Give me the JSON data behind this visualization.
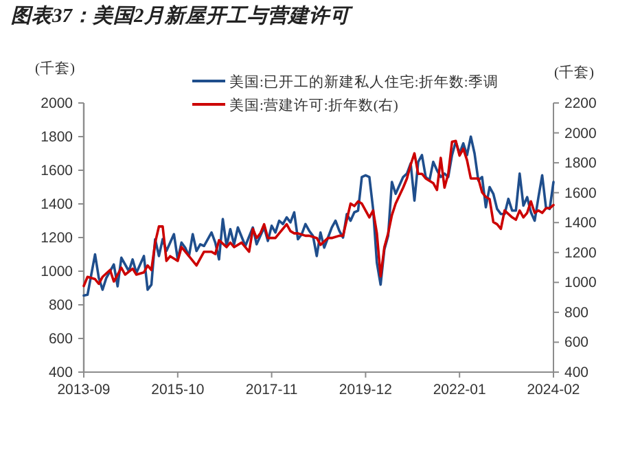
{
  "chart_data": {
    "type": "line",
    "title": "图表37：美国2月新屋开工与营建许可",
    "ylabel": "(千套)",
    "y2label": "(千套)",
    "legend": "top",
    "xlim": [
      "2013-09",
      "2024-02"
    ],
    "xticks": [
      "2013-09",
      "2015-10",
      "2017-11",
      "2019-12",
      "2022-01",
      "2024-02"
    ],
    "ylim": [
      400,
      2000
    ],
    "yticks": [
      400,
      600,
      800,
      1000,
      1200,
      1400,
      1600,
      1800,
      2000
    ],
    "y2lim": [
      400,
      2200
    ],
    "y2ticks": [
      400,
      600,
      800,
      1000,
      1200,
      1400,
      1600,
      1800,
      2000,
      2200
    ],
    "series": [
      {
        "name": "美国:已开工的新建私人住宅:折年数:季调",
        "color": "#1f4e8c",
        "x": [
          "2013-09",
          "2013-10",
          "2013-12",
          "2014-01",
          "2014-02",
          "2014-03",
          "2014-05",
          "2014-06",
          "2014-07",
          "2014-09",
          "2014-10",
          "2014-11",
          "2015-01",
          "2015-02",
          "2015-03",
          "2015-04",
          "2015-05",
          "2015-06",
          "2015-07",
          "2015-09",
          "2015-10",
          "2015-11",
          "2015-12",
          "2016-01",
          "2016-02",
          "2016-03",
          "2016-04",
          "2016-05",
          "2016-07",
          "2016-08",
          "2016-09",
          "2016-10",
          "2016-11",
          "2016-12",
          "2017-01",
          "2017-02",
          "2017-04",
          "2017-06",
          "2017-07",
          "2017-08",
          "2017-09",
          "2017-10",
          "2017-11",
          "2017-12",
          "2018-01",
          "2018-02",
          "2018-03",
          "2018-04",
          "2018-05",
          "2018-06",
          "2018-07",
          "2018-08",
          "2018-09",
          "2018-10",
          "2018-11",
          "2018-12",
          "2019-01",
          "2019-02",
          "2019-03",
          "2019-04",
          "2019-05",
          "2019-06",
          "2019-07",
          "2019-08",
          "2019-09",
          "2019-10",
          "2019-11",
          "2019-12",
          "2020-01",
          "2020-02",
          "2020-03",
          "2020-04",
          "2020-05",
          "2020-06",
          "2020-07",
          "2020-08",
          "2020-09",
          "2020-10",
          "2020-11",
          "2020-12",
          "2021-01",
          "2021-02",
          "2021-03",
          "2021-04",
          "2021-05",
          "2021-06",
          "2021-07",
          "2021-08",
          "2021-09",
          "2021-10",
          "2021-11",
          "2021-12",
          "2022-01",
          "2022-02",
          "2022-03",
          "2022-04",
          "2022-05",
          "2022-06",
          "2022-07",
          "2022-08",
          "2022-09",
          "2022-10",
          "2022-11",
          "2022-12",
          "2023-01",
          "2023-02",
          "2023-03",
          "2023-04",
          "2023-05",
          "2023-06",
          "2023-07",
          "2023-08",
          "2023-09",
          "2023-10",
          "2023-11",
          "2023-12",
          "2024-01",
          "2024-02"
        ],
        "values": [
          855,
          860,
          1100,
          960,
          890,
          960,
          1040,
          910,
          1080,
          1000,
          1070,
          990,
          1090,
          890,
          920,
          1190,
          1090,
          1190,
          1120,
          1220,
          1070,
          1170,
          1140,
          1090,
          1220,
          1120,
          1160,
          1150,
          1230,
          1170,
          1070,
          1310,
          1150,
          1250,
          1160,
          1260,
          1150,
          1260,
          1160,
          1210,
          1260,
          1180,
          1270,
          1230,
          1300,
          1280,
          1320,
          1290,
          1350,
          1190,
          1220,
          1280,
          1240,
          1210,
          1090,
          1230,
          1140,
          1200,
          1260,
          1300,
          1240,
          1200,
          1340,
          1300,
          1350,
          1360,
          1560,
          1570,
          1560,
          1370,
          1050,
          920,
          1130,
          1210,
          1530,
          1460,
          1510,
          1560,
          1580,
          1640,
          1420,
          1650,
          1690,
          1560,
          1540,
          1650,
          1600,
          1560,
          1580,
          1560,
          1690,
          1770,
          1700,
          1760,
          1690,
          1800,
          1700,
          1540,
          1560,
          1380,
          1500,
          1460,
          1370,
          1340,
          1340,
          1430,
          1360,
          1360,
          1580,
          1390,
          1440,
          1350,
          1300,
          1440,
          1570,
          1380,
          1370,
          1530
        ]
      },
      {
        "name": "美国:营建许可:折年数(右)",
        "color": "#cc0000",
        "axis": "y2",
        "x": [
          "2013-09",
          "2013-10",
          "2013-12",
          "2014-01",
          "2014-02",
          "2014-04",
          "2014-05",
          "2014-07",
          "2014-08",
          "2014-10",
          "2014-11",
          "2015-01",
          "2015-02",
          "2015-03",
          "2015-04",
          "2015-05",
          "2015-06",
          "2015-07",
          "2015-08",
          "2015-10",
          "2015-11",
          "2016-01",
          "2016-03",
          "2016-05",
          "2016-07",
          "2016-08",
          "2016-09",
          "2016-11",
          "2016-12",
          "2017-01",
          "2017-03",
          "2017-05",
          "2017-06",
          "2017-07",
          "2017-08",
          "2017-09",
          "2017-10",
          "2017-12",
          "2018-01",
          "2018-03",
          "2018-04",
          "2018-05",
          "2018-06",
          "2018-08",
          "2018-09",
          "2018-11",
          "2018-12",
          "2019-02",
          "2019-03",
          "2019-05",
          "2019-06",
          "2019-08",
          "2019-09",
          "2019-10",
          "2019-11",
          "2020-01",
          "2020-02",
          "2020-03",
          "2020-04",
          "2020-05",
          "2020-06",
          "2020-07",
          "2020-08",
          "2020-10",
          "2020-11",
          "2020-12",
          "2021-01",
          "2021-02",
          "2021-03",
          "2021-04",
          "2021-06",
          "2021-07",
          "2021-08",
          "2021-09",
          "2021-10",
          "2021-11",
          "2021-12",
          "2022-01",
          "2022-02",
          "2022-03",
          "2022-04",
          "2022-06",
          "2022-07",
          "2022-08",
          "2022-09",
          "2022-10",
          "2022-11",
          "2022-12",
          "2023-01",
          "2023-03",
          "2023-04",
          "2023-05",
          "2023-06",
          "2023-07",
          "2023-08",
          "2023-09",
          "2023-10",
          "2023-11",
          "2023-12",
          "2024-01",
          "2024-02"
        ],
        "values": [
          976,
          1037,
          1022,
          991,
          1037,
          1083,
          1006,
          1098,
          1052,
          1092,
          1052,
          1067,
          1113,
          1083,
          1266,
          1374,
          1374,
          1144,
          1175,
          1144,
          1236,
          1175,
          1113,
          1205,
          1205,
          1190,
          1282,
          1236,
          1266,
          1236,
          1266,
          1205,
          1358,
          1297,
          1328,
          1389,
          1297,
          1297,
          1328,
          1389,
          1343,
          1328,
          1328,
          1312,
          1312,
          1297,
          1251,
          1297,
          1297,
          1312,
          1312,
          1527,
          1511,
          1542,
          1527,
          1435,
          1481,
          1328,
          1040,
          1236,
          1328,
          1450,
          1527,
          1634,
          1695,
          1787,
          1863,
          1726,
          1726,
          1695,
          1664,
          1618,
          1833,
          1634,
          1726,
          1940,
          1946,
          1848,
          1894,
          1817,
          1695,
          1695,
          1603,
          1572,
          1557,
          1404,
          1389,
          1358,
          1481,
          1435,
          1419,
          1481,
          1435,
          1465,
          1542,
          1465,
          1481,
          1465,
          1496,
          1496,
          1517
        ]
      }
    ]
  }
}
